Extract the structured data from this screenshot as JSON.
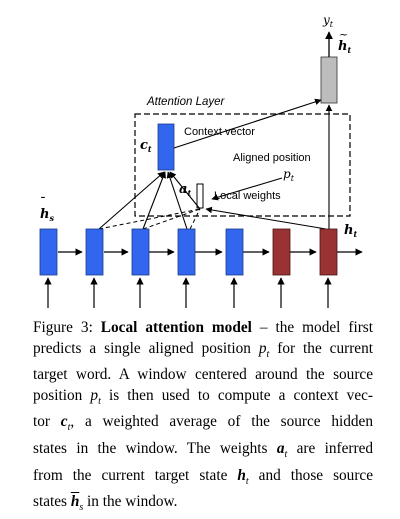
{
  "figure": {
    "output_label": "y",
    "output_sub": "t",
    "attn_hidden_label": "h",
    "attn_hidden_sub": "t",
    "attention_layer_label": "Attention Layer",
    "context_sym": "c",
    "context_sub": "t",
    "context_label": "Context vector",
    "aligned_label": "Aligned position",
    "pt_sym": "p",
    "pt_sub": "t",
    "at_sym": "a",
    "at_sub": "t",
    "local_weights_label": "Local weights",
    "source_label": "h",
    "source_sub": "s",
    "target_label": "h",
    "target_sub": "t",
    "colors": {
      "source": "#3366ee",
      "target": "#993333",
      "output": "#bdbdbd"
    }
  },
  "caption": {
    "fig_prefix": "Figure 3: ",
    "bold_title": "Local attention model",
    "l1_rest": " – the model first",
    "l2a": "predicts a single aligned position ",
    "l2_p": "p",
    "l2_t": "t",
    "l2b": " for the current",
    "l3": "target word. A window centered around the source",
    "l4a": "position ",
    "l4_p": "p",
    "l4_t": "t",
    "l4b": " is then used to compute a context vec-",
    "l5a": "tor ",
    "l5_c": "c",
    "l5_t": "t",
    "l5b": ", a weighted average of the source hidden",
    "l6a": "states in the window. The weights ",
    "l6_a": "a",
    "l6_t": "t",
    "l6b": " are inferred",
    "l7a": "from the current target state ",
    "l7_h": "h",
    "l7_t": "t",
    "l7b": " and those source",
    "l8a": "states ",
    "l8_h": "h",
    "l8_s": "s",
    "l8b": " in the window."
  }
}
